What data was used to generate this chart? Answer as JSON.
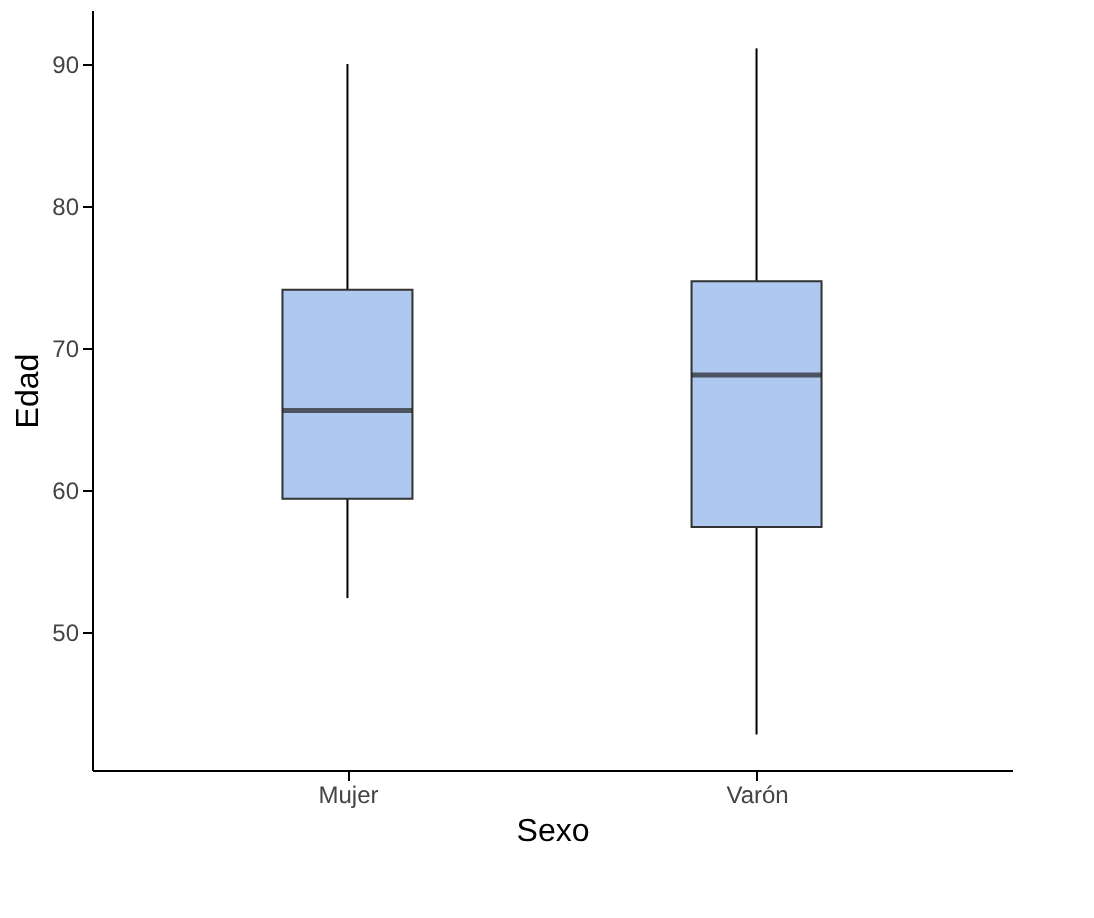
{
  "chart_data": {
    "type": "box",
    "xlabel": "Sexo",
    "ylabel": "Edad",
    "categories": [
      "Mujer",
      "Varón"
    ],
    "boxes": [
      {
        "low": 52.4,
        "q1": 59.4,
        "median": 65.6,
        "q3": 74.1,
        "high": 90
      },
      {
        "low": 42.8,
        "q1": 57.4,
        "median": 68.1,
        "q3": 74.7,
        "high": 91.1
      }
    ],
    "color": "#aec8f0",
    "ylim": [
      40.3,
      93.8
    ],
    "yticks": [
      50,
      60,
      70,
      80,
      90
    ],
    "grid": false
  }
}
